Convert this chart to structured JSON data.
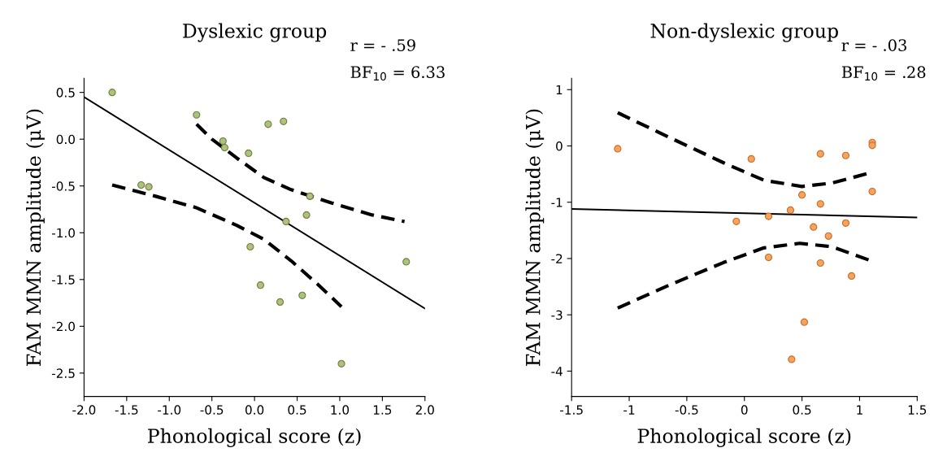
{
  "chart_data": [
    {
      "type": "scatter",
      "title": "Dyslexic group",
      "xlabel": "Phonological score (z)",
      "ylabel": "FAM MMN amplitude (μV)",
      "xlim": [
        -2.0,
        2.0
      ],
      "ylim": [
        -2.75,
        0.65
      ],
      "xticks": [
        {
          "value": -2.0,
          "label": "-2.0"
        },
        {
          "value": -1.5,
          "label": "-1.5"
        },
        {
          "value": -1.0,
          "label": "-1.0"
        },
        {
          "value": -0.5,
          "label": "-0.5"
        },
        {
          "value": 0.0,
          "label": "0.0"
        },
        {
          "value": 0.5,
          "label": "0.5"
        },
        {
          "value": 1.0,
          "label": "1.0"
        },
        {
          "value": 1.5,
          "label": "1.5"
        },
        {
          "value": 2.0,
          "label": "2.0"
        }
      ],
      "yticks": [
        {
          "value": 0.5,
          "label": "0.5"
        },
        {
          "value": 0.0,
          "label": "0.0"
        },
        {
          "value": -0.5,
          "label": "-0.5"
        },
        {
          "value": -1.0,
          "label": "-1.0"
        },
        {
          "value": -1.5,
          "label": "-1.5"
        },
        {
          "value": -2.0,
          "label": "-2.0"
        },
        {
          "value": -2.5,
          "label": "-2.5"
        }
      ],
      "grid": false,
      "legend": false,
      "annotations": [
        "r = - .59",
        "BF$_{10}$ = 6.33"
      ],
      "series": [
        {
          "color": "#a8c480",
          "marker": "circle",
          "x": [
            -1.67,
            -0.68,
            -0.37,
            -0.35,
            -0.07,
            0.16,
            0.34,
            -1.33,
            -1.24,
            0.65,
            0.61,
            0.37,
            -0.05,
            1.78,
            0.07,
            0.56,
            0.3,
            1.02
          ],
          "values": [
            0.5,
            0.26,
            -0.02,
            -0.09,
            -0.15,
            0.16,
            0.19,
            -0.49,
            -0.51,
            -0.61,
            -0.81,
            -0.88,
            -1.15,
            -1.31,
            -1.56,
            -1.67,
            -1.74,
            -2.4
          ]
        },
        {
          "type": "line",
          "color": "#000000",
          "line_style": "solid",
          "x": [
            -2.0,
            2.0
          ],
          "values": [
            0.45,
            -1.81
          ]
        },
        {
          "type": "line",
          "color": "#000000",
          "line_style": "dashed",
          "x": [
            -0.68,
            -0.5,
            -0.21,
            0.11,
            0.43,
            0.9,
            1.38,
            1.76
          ],
          "values": [
            0.16,
            0.0,
            -0.2,
            -0.41,
            -0.54,
            -0.68,
            -0.81,
            -0.88
          ]
        },
        {
          "type": "line",
          "color": "#000000",
          "line_style": "dashed",
          "x": [
            -1.67,
            -1.16,
            -0.69,
            -0.21,
            0.11,
            0.43,
            0.74,
            1.02
          ],
          "values": [
            -0.49,
            -0.61,
            -0.73,
            -0.92,
            -1.07,
            -1.3,
            -1.55,
            -1.79
          ]
        }
      ]
    },
    {
      "type": "scatter",
      "title": "Non-dyslexic group",
      "xlabel": "Phonological score (z)",
      "ylabel": "FAM MMN amplitude (μV)",
      "xlim": [
        -1.5,
        1.5
      ],
      "ylim": [
        -4.45,
        1.2
      ],
      "xticks": [
        -1.5,
        -1,
        -0.5,
        0,
        0.5,
        1,
        1.5
      ],
      "yticks": [
        1,
        0,
        -1,
        -2,
        -3,
        -4
      ],
      "grid": false,
      "legend": false,
      "annotations": [
        "r = - .03",
        "BF$_{10}$ = .28"
      ],
      "series": [
        {
          "color": "#f2a462",
          "marker": "circle",
          "x": [
            -1.1,
            0.06,
            0.66,
            0.88,
            1.11,
            1.11,
            1.11,
            0.5,
            0.66,
            0.4,
            0.21,
            -0.07,
            0.6,
            0.88,
            0.73,
            0.21,
            0.66,
            0.93,
            0.52,
            0.41
          ],
          "values": [
            -0.05,
            -0.23,
            -0.14,
            -0.17,
            0.06,
            0.01,
            -0.81,
            -0.87,
            -1.03,
            -1.14,
            -1.25,
            -1.34,
            -1.44,
            -1.37,
            -1.6,
            -1.98,
            -2.08,
            -2.31,
            -3.13,
            -3.79
          ]
        },
        {
          "type": "line",
          "color": "#000000",
          "line_style": "solid",
          "x": [
            -1.5,
            1.5
          ],
          "values": [
            -1.12,
            -1.27
          ]
        },
        {
          "type": "line",
          "color": "#000000",
          "line_style": "dashed",
          "x": [
            -1.1,
            -0.65,
            -0.18,
            0.17,
            0.5,
            0.76,
            1.07
          ],
          "values": [
            0.59,
            0.15,
            -0.3,
            -0.61,
            -0.72,
            -0.66,
            -0.49
          ]
        },
        {
          "type": "line",
          "color": "#000000",
          "line_style": "dashed",
          "x": [
            -1.1,
            -0.65,
            -0.18,
            0.17,
            0.48,
            0.76,
            1.1
          ],
          "values": [
            -2.88,
            -2.47,
            -2.07,
            -1.81,
            -1.73,
            -1.79,
            -2.04
          ]
        }
      ]
    }
  ]
}
